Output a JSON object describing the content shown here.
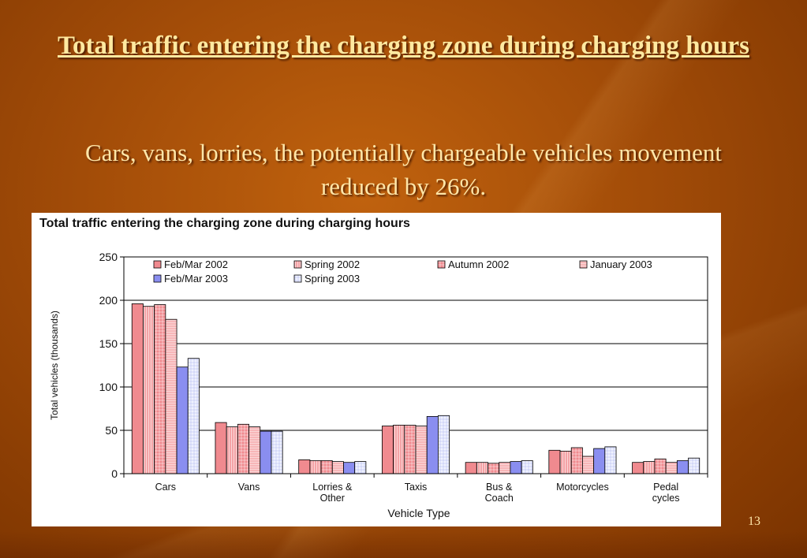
{
  "slide": {
    "title": "Total traffic entering the charging zone during charging hours",
    "subtitle": "Cars, vans, lorries, the potentially chargeable vehicles movement reduced by 26%.",
    "slide_number": "13"
  },
  "chart_data": {
    "type": "bar",
    "title": "Total traffic entering the charging zone during charging hours",
    "xlabel": "Vehicle Type",
    "ylabel": "Total vehicles (thousands)",
    "ylim": [
      0,
      250
    ],
    "yticks": [
      0,
      50,
      100,
      150,
      200,
      250
    ],
    "grid": true,
    "legend_position": "top",
    "categories": [
      [
        "Cars"
      ],
      [
        "Vans"
      ],
      [
        "Lorries &",
        "Other"
      ],
      [
        "Taxis"
      ],
      [
        "Bus &",
        "Coach"
      ],
      [
        "Motorcycles"
      ],
      [
        "Pedal",
        "cycles"
      ]
    ],
    "series": [
      {
        "name": "Feb/Mar 2002",
        "color": "#f08a8f",
        "pattern": "solid",
        "values": [
          196,
          59,
          16,
          55,
          13,
          27,
          13
        ]
      },
      {
        "name": "Spring 2002",
        "color": "#f4a3a6",
        "pattern": "vlines",
        "values": [
          193,
          54,
          15,
          56,
          13,
          26,
          14
        ]
      },
      {
        "name": "Autumn 2002",
        "color": "#f08a8f",
        "pattern": "grid",
        "values": [
          195,
          57,
          15,
          56,
          12,
          30,
          17
        ]
      },
      {
        "name": "January 2003",
        "color": "#f7b6b8",
        "pattern": "fine",
        "values": [
          178,
          54,
          14,
          55,
          13,
          20,
          13
        ]
      },
      {
        "name": "Feb/Mar 2003",
        "color": "#8a8ef0",
        "pattern": "solid",
        "values": [
          123,
          49,
          13,
          66,
          14,
          29,
          15
        ]
      },
      {
        "name": "Spring 2003",
        "color": "#e8ecff",
        "pattern": "grid-light",
        "values": [
          133,
          49,
          14,
          67,
          15,
          31,
          18
        ]
      }
    ]
  }
}
